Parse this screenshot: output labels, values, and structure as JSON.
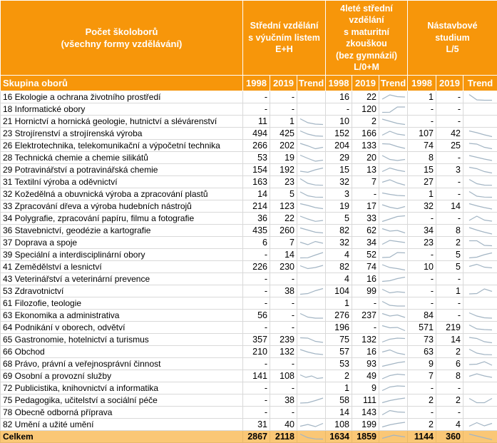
{
  "colors": {
    "header_bg": "#F7960A",
    "total_bg": "#FAC776",
    "sparkline": "#A3B5C4",
    "grid": "#D9D9D9",
    "header_text": "#FFFFFF",
    "body_text": "#000000"
  },
  "chart_data": {
    "type": "table",
    "title": "Počet školoborů\n(všechny formy vzdělávání)",
    "row_header": "Skupina oborů",
    "groups": [
      "Střední vzdělání\ns výučním listem\nE+H",
      "4leté střední\nvzdělání\ns maturitní\nzkouškou\n(bez gymnázií)\nL/0+M",
      "Nástavbové\nstudium\nL/5"
    ],
    "sub_columns": [
      "1998",
      "2019",
      "Trend"
    ],
    "rows": [
      {
        "name": "16 Ekologie a ochrana životního prostředí",
        "eh": [
          "-",
          "-",
          null
        ],
        "mat": [
          "16",
          "22",
          [
            0.25,
            0.85,
            0.6,
            0.55
          ]
        ],
        "nas": [
          "1",
          "-",
          [
            0.9,
            0.15,
            0.1,
            0.1
          ]
        ]
      },
      {
        "name": "18 Informatické obory",
        "eh": [
          "-",
          "-",
          null
        ],
        "mat": [
          "-",
          "120",
          [
            0.1,
            0.12,
            0.85,
            0.85
          ]
        ],
        "nas": [
          "-",
          "-",
          null
        ]
      },
      {
        "name": "21 Hornictví a hornická geologie, hutnictví a slévárenství",
        "eh": [
          "11",
          "1",
          [
            0.9,
            0.35,
            0.15,
            0.1
          ]
        ],
        "mat": [
          "10",
          "2",
          [
            0.85,
            0.55,
            0.25,
            0.1
          ]
        ],
        "nas": [
          "-",
          "-",
          null
        ]
      },
      {
        "name": "23 Strojírenství a strojírenská výroba",
        "eh": [
          "494",
          "425",
          [
            0.9,
            0.45,
            0.2,
            0.15
          ]
        ],
        "mat": [
          "152",
          "166",
          [
            0.3,
            0.85,
            0.45,
            0.3
          ]
        ],
        "nas": [
          "107",
          "42",
          [
            0.9,
            0.65,
            0.35,
            0.1
          ]
        ]
      },
      {
        "name": "26 Elektrotechnika, telekomunikační a výpočetní technika",
        "eh": [
          "266",
          "202",
          [
            0.85,
            0.5,
            0.1,
            0.3
          ]
        ],
        "mat": [
          "204",
          "133",
          [
            0.8,
            0.75,
            0.4,
            0.15
          ]
        ],
        "nas": [
          "74",
          "25",
          [
            0.85,
            0.75,
            0.3,
            0.1
          ]
        ]
      },
      {
        "name": "28 Technická chemie a chemie silikátů",
        "eh": [
          "53",
          "19",
          [
            0.9,
            0.45,
            0.05,
            0.2
          ]
        ],
        "mat": [
          "29",
          "20",
          [
            0.85,
            0.3,
            0.15,
            0.3
          ]
        ],
        "nas": [
          "8",
          "-",
          [
            0.85,
            0.6,
            0.35,
            0.15
          ]
        ]
      },
      {
        "name": "29 Potravinářství a potravinářská chemie",
        "eh": [
          "154",
          "192",
          [
            0.35,
            0.2,
            0.55,
            0.8
          ]
        ],
        "mat": [
          "15",
          "13",
          [
            0.3,
            0.8,
            0.5,
            0.3
          ]
        ],
        "nas": [
          "15",
          "3",
          [
            0.9,
            0.7,
            0.3,
            0.1
          ]
        ]
      },
      {
        "name": "31 Textilní výroba a oděvnictví",
        "eh": [
          "163",
          "23",
          [
            1,
            0.35,
            0.12,
            0.08
          ]
        ],
        "mat": [
          "32",
          "7",
          [
            0.5,
            0.85,
            0.4,
            0.1
          ]
        ],
        "nas": [
          "27",
          "-",
          [
            0.9,
            0.3,
            0.1,
            0.08
          ]
        ]
      },
      {
        "name": "32 Kožedělná a obuvnická výroba a zpracování plastů",
        "eh": [
          "14",
          "5",
          [
            0.85,
            0.3,
            0.12,
            0.1
          ]
        ],
        "mat": [
          "3",
          "-",
          [
            0.7,
            0.5,
            0.35,
            0.3
          ]
        ],
        "nas": [
          "1",
          "-",
          [
            0.9,
            0.25,
            0.12,
            0.1
          ]
        ]
      },
      {
        "name": "33 Zpracování dřeva a výroba hudebních nástrojů",
        "eh": [
          "214",
          "123",
          [
            0.9,
            0.65,
            0.35,
            0.2
          ]
        ],
        "mat": [
          "19",
          "17",
          [
            0.75,
            0.4,
            0.2,
            0.5
          ]
        ],
        "nas": [
          "32",
          "14",
          [
            0.9,
            0.6,
            0.35,
            0.15
          ]
        ]
      },
      {
        "name": "34 Polygrafie, zpracování papíru, filmu a fotografie",
        "eh": [
          "36",
          "22",
          [
            0.85,
            0.45,
            0.12,
            0.25
          ]
        ],
        "mat": [
          "5",
          "33",
          [
            0.1,
            0.45,
            0.8,
            0.9
          ]
        ],
        "nas": [
          "-",
          "-",
          [
            0.25,
            0.85,
            0.3,
            0.15
          ]
        ]
      },
      {
        "name": "36 Stavebnictví, geodézie a kartografie",
        "eh": [
          "435",
          "260",
          [
            0.9,
            0.6,
            0.3,
            0.2
          ]
        ],
        "mat": [
          "82",
          "62",
          [
            0.8,
            0.45,
            0.55,
            0.2
          ]
        ],
        "nas": [
          "34",
          "8",
          [
            0.95,
            0.6,
            0.3,
            0.05
          ]
        ]
      },
      {
        "name": "37 Doprava a spoje",
        "eh": [
          "6",
          "7",
          [
            0.6,
            0.25,
            0.7,
            0.45
          ]
        ],
        "mat": [
          "32",
          "34",
          [
            0.3,
            0.85,
            0.7,
            0.55
          ]
        ],
        "nas": [
          "23",
          "2",
          [
            0.8,
            0.8,
            0.15,
            0.1
          ]
        ]
      },
      {
        "name": "39 Speciální a interdisciplinární obory",
        "eh": [
          "-",
          "14",
          [
            0.1,
            0.12,
            0.5,
            0.85
          ]
        ],
        "mat": [
          "4",
          "52",
          [
            0.15,
            0.2,
            0.85,
            0.8
          ]
        ],
        "nas": [
          "-",
          "5",
          [
            0.1,
            0.2,
            0.55,
            0.8
          ]
        ]
      },
      {
        "name": "41 Zemědělství a lesnictví",
        "eh": [
          "226",
          "230",
          [
            0.7,
            0.3,
            0.45,
            0.75
          ]
        ],
        "mat": [
          "82",
          "74",
          [
            0.85,
            0.45,
            0.3,
            0.1
          ]
        ],
        "nas": [
          "10",
          "5",
          [
            0.6,
            0.9,
            0.5,
            0.4
          ]
        ]
      },
      {
        "name": "43 Veterinářství a veterinární prevence",
        "eh": [
          "-",
          "-",
          null
        ],
        "mat": [
          "4",
          "16",
          [
            0.2,
            0.3,
            0.6,
            0.8
          ]
        ],
        "nas": [
          "-",
          "-",
          null
        ]
      },
      {
        "name": "53 Zdravotnictví",
        "eh": [
          "-",
          "38",
          [
            0.1,
            0.2,
            0.6,
            0.9
          ]
        ],
        "mat": [
          "104",
          "99",
          [
            0.8,
            0.3,
            0.45,
            0.35
          ]
        ],
        "nas": [
          "-",
          "1",
          [
            0.15,
            0.2,
            0.85,
            0.5
          ]
        ]
      },
      {
        "name": "61 Filozofie, teologie",
        "eh": [
          "-",
          "-",
          null
        ],
        "mat": [
          "1",
          "-",
          [
            0.8,
            0.25,
            0.15,
            0.15
          ]
        ],
        "nas": [
          "-",
          "-",
          null
        ]
      },
      {
        "name": "63 Ekonomika a administrativa",
        "eh": [
          "56",
          "-",
          [
            0.8,
            0.3,
            0.15,
            0.15
          ]
        ],
        "mat": [
          "276",
          "237",
          [
            0.8,
            0.45,
            0.6,
            0.25
          ]
        ],
        "nas": [
          "84",
          "-",
          [
            0.9,
            0.45,
            0.2,
            0.15
          ]
        ]
      },
      {
        "name": "64 Podnikání v oborech, odvětví",
        "eh": [
          "-",
          "-",
          null
        ],
        "mat": [
          "196",
          "-",
          [
            0.8,
            0.5,
            0.55,
            0.1
          ]
        ],
        "nas": [
          "571",
          "219",
          [
            0.9,
            0.35,
            0.25,
            0.2
          ]
        ]
      },
      {
        "name": "65 Gastronomie, hotelnictví a turismus",
        "eh": [
          "357",
          "239",
          [
            0.8,
            0.75,
            0.3,
            0.15
          ]
        ],
        "mat": [
          "75",
          "132",
          [
            0.2,
            0.6,
            0.75,
            0.7
          ]
        ],
        "nas": [
          "73",
          "14",
          [
            0.85,
            0.7,
            0.25,
            0.1
          ]
        ]
      },
      {
        "name": "66 Obchod",
        "eh": [
          "210",
          "132",
          [
            0.85,
            0.5,
            0.25,
            0.15
          ]
        ],
        "mat": [
          "57",
          "16",
          [
            0.5,
            0.8,
            0.35,
            0.15
          ]
        ],
        "nas": [
          "63",
          "2",
          [
            0.9,
            0.35,
            0.15,
            0.12
          ]
        ]
      },
      {
        "name": "68 Právo, právní a veřejnosprávní činnost",
        "eh": [
          "-",
          "-",
          null
        ],
        "mat": [
          "53",
          "93",
          [
            0.2,
            0.45,
            0.7,
            0.85
          ]
        ],
        "nas": [
          "9",
          "6",
          [
            0.45,
            0.5,
            0.85,
            0.35
          ]
        ]
      },
      {
        "name": "69 Osobní a provozní služby",
        "eh": [
          "141",
          "108",
          [
            0.7,
            0.35,
            0.55,
            0.2,
            0.3
          ]
        ],
        "mat": [
          "2",
          "49",
          [
            0.15,
            0.6,
            0.8,
            0.7
          ]
        ],
        "nas": [
          "7",
          "8",
          [
            0.5,
            0.85,
            0.55,
            0.35
          ]
        ]
      },
      {
        "name": "72 Publicistika, knihovnictví a informatika",
        "eh": [
          "-",
          "-",
          null
        ],
        "mat": [
          "1",
          "9",
          [
            0.2,
            0.7,
            0.85,
            0.8
          ]
        ],
        "nas": [
          "-",
          "-",
          null
        ]
      },
      {
        "name": "75 Pedagogika, učitelství a sociální péče",
        "eh": [
          "-",
          "38",
          [
            0.15,
            0.2,
            0.5,
            0.85
          ]
        ],
        "mat": [
          "58",
          "111",
          [
            0.2,
            0.5,
            0.7,
            0.85
          ]
        ],
        "nas": [
          "2",
          "2",
          [
            0.8,
            0.2,
            0.2,
            0.8
          ]
        ]
      },
      {
        "name": "78 Obecně odborná příprava",
        "eh": [
          "-",
          "-",
          null
        ],
        "mat": [
          "14",
          "143",
          [
            0.2,
            0.8,
            0.6,
            0.55
          ]
        ],
        "nas": [
          "-",
          "-",
          null
        ]
      },
      {
        "name": "82 Umění a užité umění",
        "eh": [
          "31",
          "40",
          [
            0.3,
            0.55,
            0.25,
            0.7
          ]
        ],
        "mat": [
          "108",
          "199",
          [
            0.2,
            0.5,
            0.7,
            0.85
          ]
        ],
        "nas": [
          "2",
          "4",
          [
            0.3,
            0.8,
            0.35,
            0.7
          ]
        ]
      }
    ],
    "total": {
      "name": "Celkem",
      "eh": [
        "2867",
        "2118",
        [
          0.9,
          0.4,
          0.22,
          0.2
        ]
      ],
      "mat": [
        "1634",
        "1859",
        [
          0.3,
          0.75,
          0.5
        ]
      ],
      "nas": [
        "1144",
        "360",
        [
          0.9,
          0.5,
          0.12
        ]
      ]
    }
  }
}
